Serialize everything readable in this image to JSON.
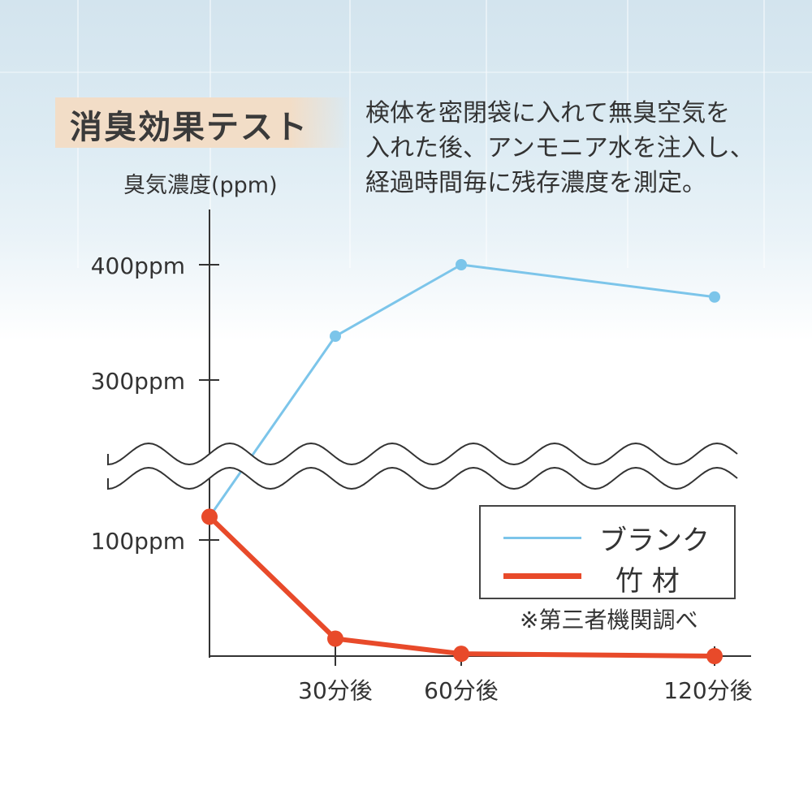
{
  "title": "消臭効果テスト",
  "description": [
    "検体を密閉袋に入れて無臭空気を",
    "入れた後、アンモニア水を注入し、",
    "経過時間毎に残存濃度を測定。"
  ],
  "note": "※第三者機関調べ",
  "colors": {
    "blank": "#7cc5ea",
    "bamboo": "#e84a2a",
    "title_bg": "#f2ddc7"
  },
  "chart_data": {
    "type": "line",
    "ylabel": "臭気濃度(ppm)",
    "x_tick_labels": [
      "30分後",
      "60分後",
      "120分後"
    ],
    "y_tick_labels": [
      "400ppm",
      "300ppm",
      "100ppm"
    ],
    "y_axis_break": true,
    "legend_position": "bottom-right",
    "series": [
      {
        "name": "ブランク",
        "x": [
          0,
          30,
          60,
          120
        ],
        "y": [
          120,
          338,
          400,
          372
        ]
      },
      {
        "name": "竹 材",
        "x": [
          0,
          30,
          60,
          120
        ],
        "y": [
          120,
          15,
          2,
          0
        ]
      }
    ]
  }
}
